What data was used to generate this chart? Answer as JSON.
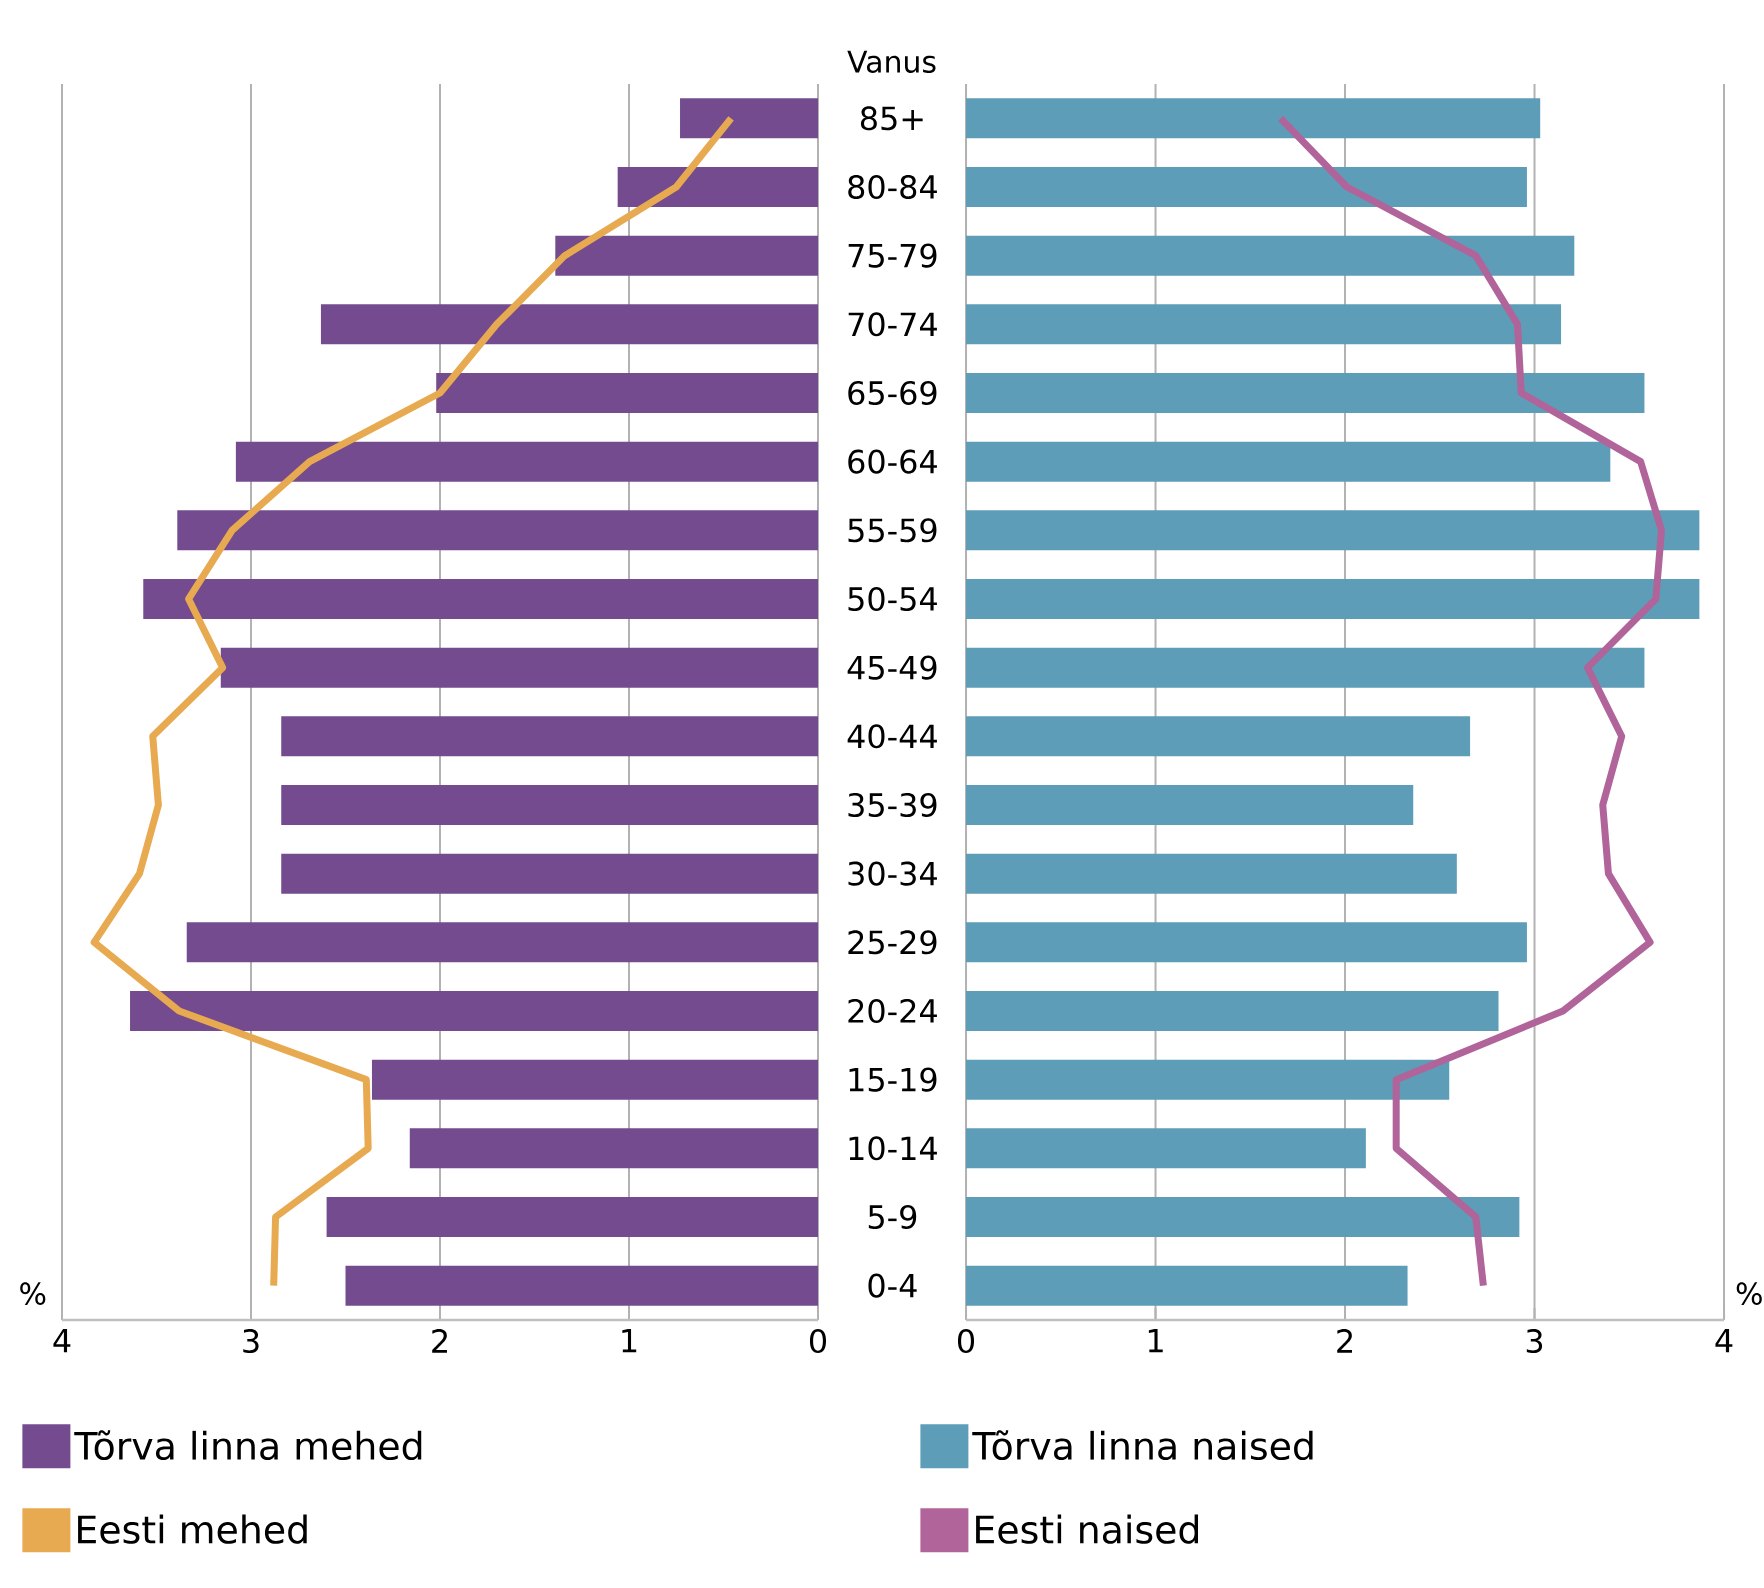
{
  "chart_data": [
    {
      "type": "bar",
      "orientation": "horizontal",
      "categories": [
        "85+",
        "80-84",
        "75-79",
        "70-74",
        "65-69",
        "60-64",
        "55-59",
        "50-54",
        "45-49",
        "40-44",
        "35-39",
        "30-34",
        "25-29",
        "20-24",
        "15-19",
        "10-14",
        "5-9",
        "0-4"
      ],
      "series": [
        {
          "name": "Tõrva linna mehed",
          "color": "#734b8e",
          "values": [
            0.73,
            1.06,
            1.39,
            2.63,
            2.02,
            3.08,
            3.39,
            3.57,
            3.16,
            2.84,
            2.84,
            2.84,
            3.34,
            3.64,
            2.36,
            2.16,
            2.6,
            2.5
          ]
        },
        {
          "name": "Eesti mehed",
          "type": "line",
          "color": "#e8aa50",
          "values": [
            0.46,
            0.75,
            1.34,
            1.7,
            2.0,
            2.69,
            3.1,
            3.33,
            3.15,
            3.52,
            3.49,
            3.59,
            3.83,
            3.38,
            2.39,
            2.38,
            2.87,
            2.88
          ]
        }
      ],
      "xlim": [
        4,
        0
      ],
      "xticks": [
        4,
        3,
        2,
        1,
        0
      ],
      "xlabel": "%",
      "grid": "x",
      "legend": "bottom"
    },
    {
      "type": "bar",
      "orientation": "horizontal",
      "categories": [
        null,
        null,
        null,
        null,
        null,
        null,
        null,
        null,
        null,
        null,
        null,
        null,
        null,
        null,
        null,
        null,
        null,
        null
      ],
      "series": [
        {
          "name": "Tõrva linna naised",
          "color": "#5e9db8",
          "values": [
            3.03,
            2.96,
            3.21,
            3.14,
            3.58,
            3.4,
            3.87,
            3.87,
            3.58,
            2.66,
            2.36,
            2.59,
            2.96,
            2.81,
            2.55,
            2.11,
            2.92,
            2.33
          ]
        },
        {
          "name": "Eesti naised",
          "type": "line",
          "color": "#b0649a",
          "values": [
            1.66,
            2.01,
            2.69,
            2.91,
            2.93,
            3.56,
            3.67,
            3.64,
            3.28,
            3.46,
            3.36,
            3.39,
            3.61,
            3.15,
            2.27,
            2.27,
            2.69,
            2.73
          ]
        }
      ],
      "xlim": [
        0,
        4
      ],
      "xticks": [
        0,
        1,
        2,
        3,
        4
      ],
      "xlabel": "%",
      "ylabel": "Vanus",
      "grid": "x",
      "legend": "bottom",
      "tick_labels": "x"
    }
  ]
}
